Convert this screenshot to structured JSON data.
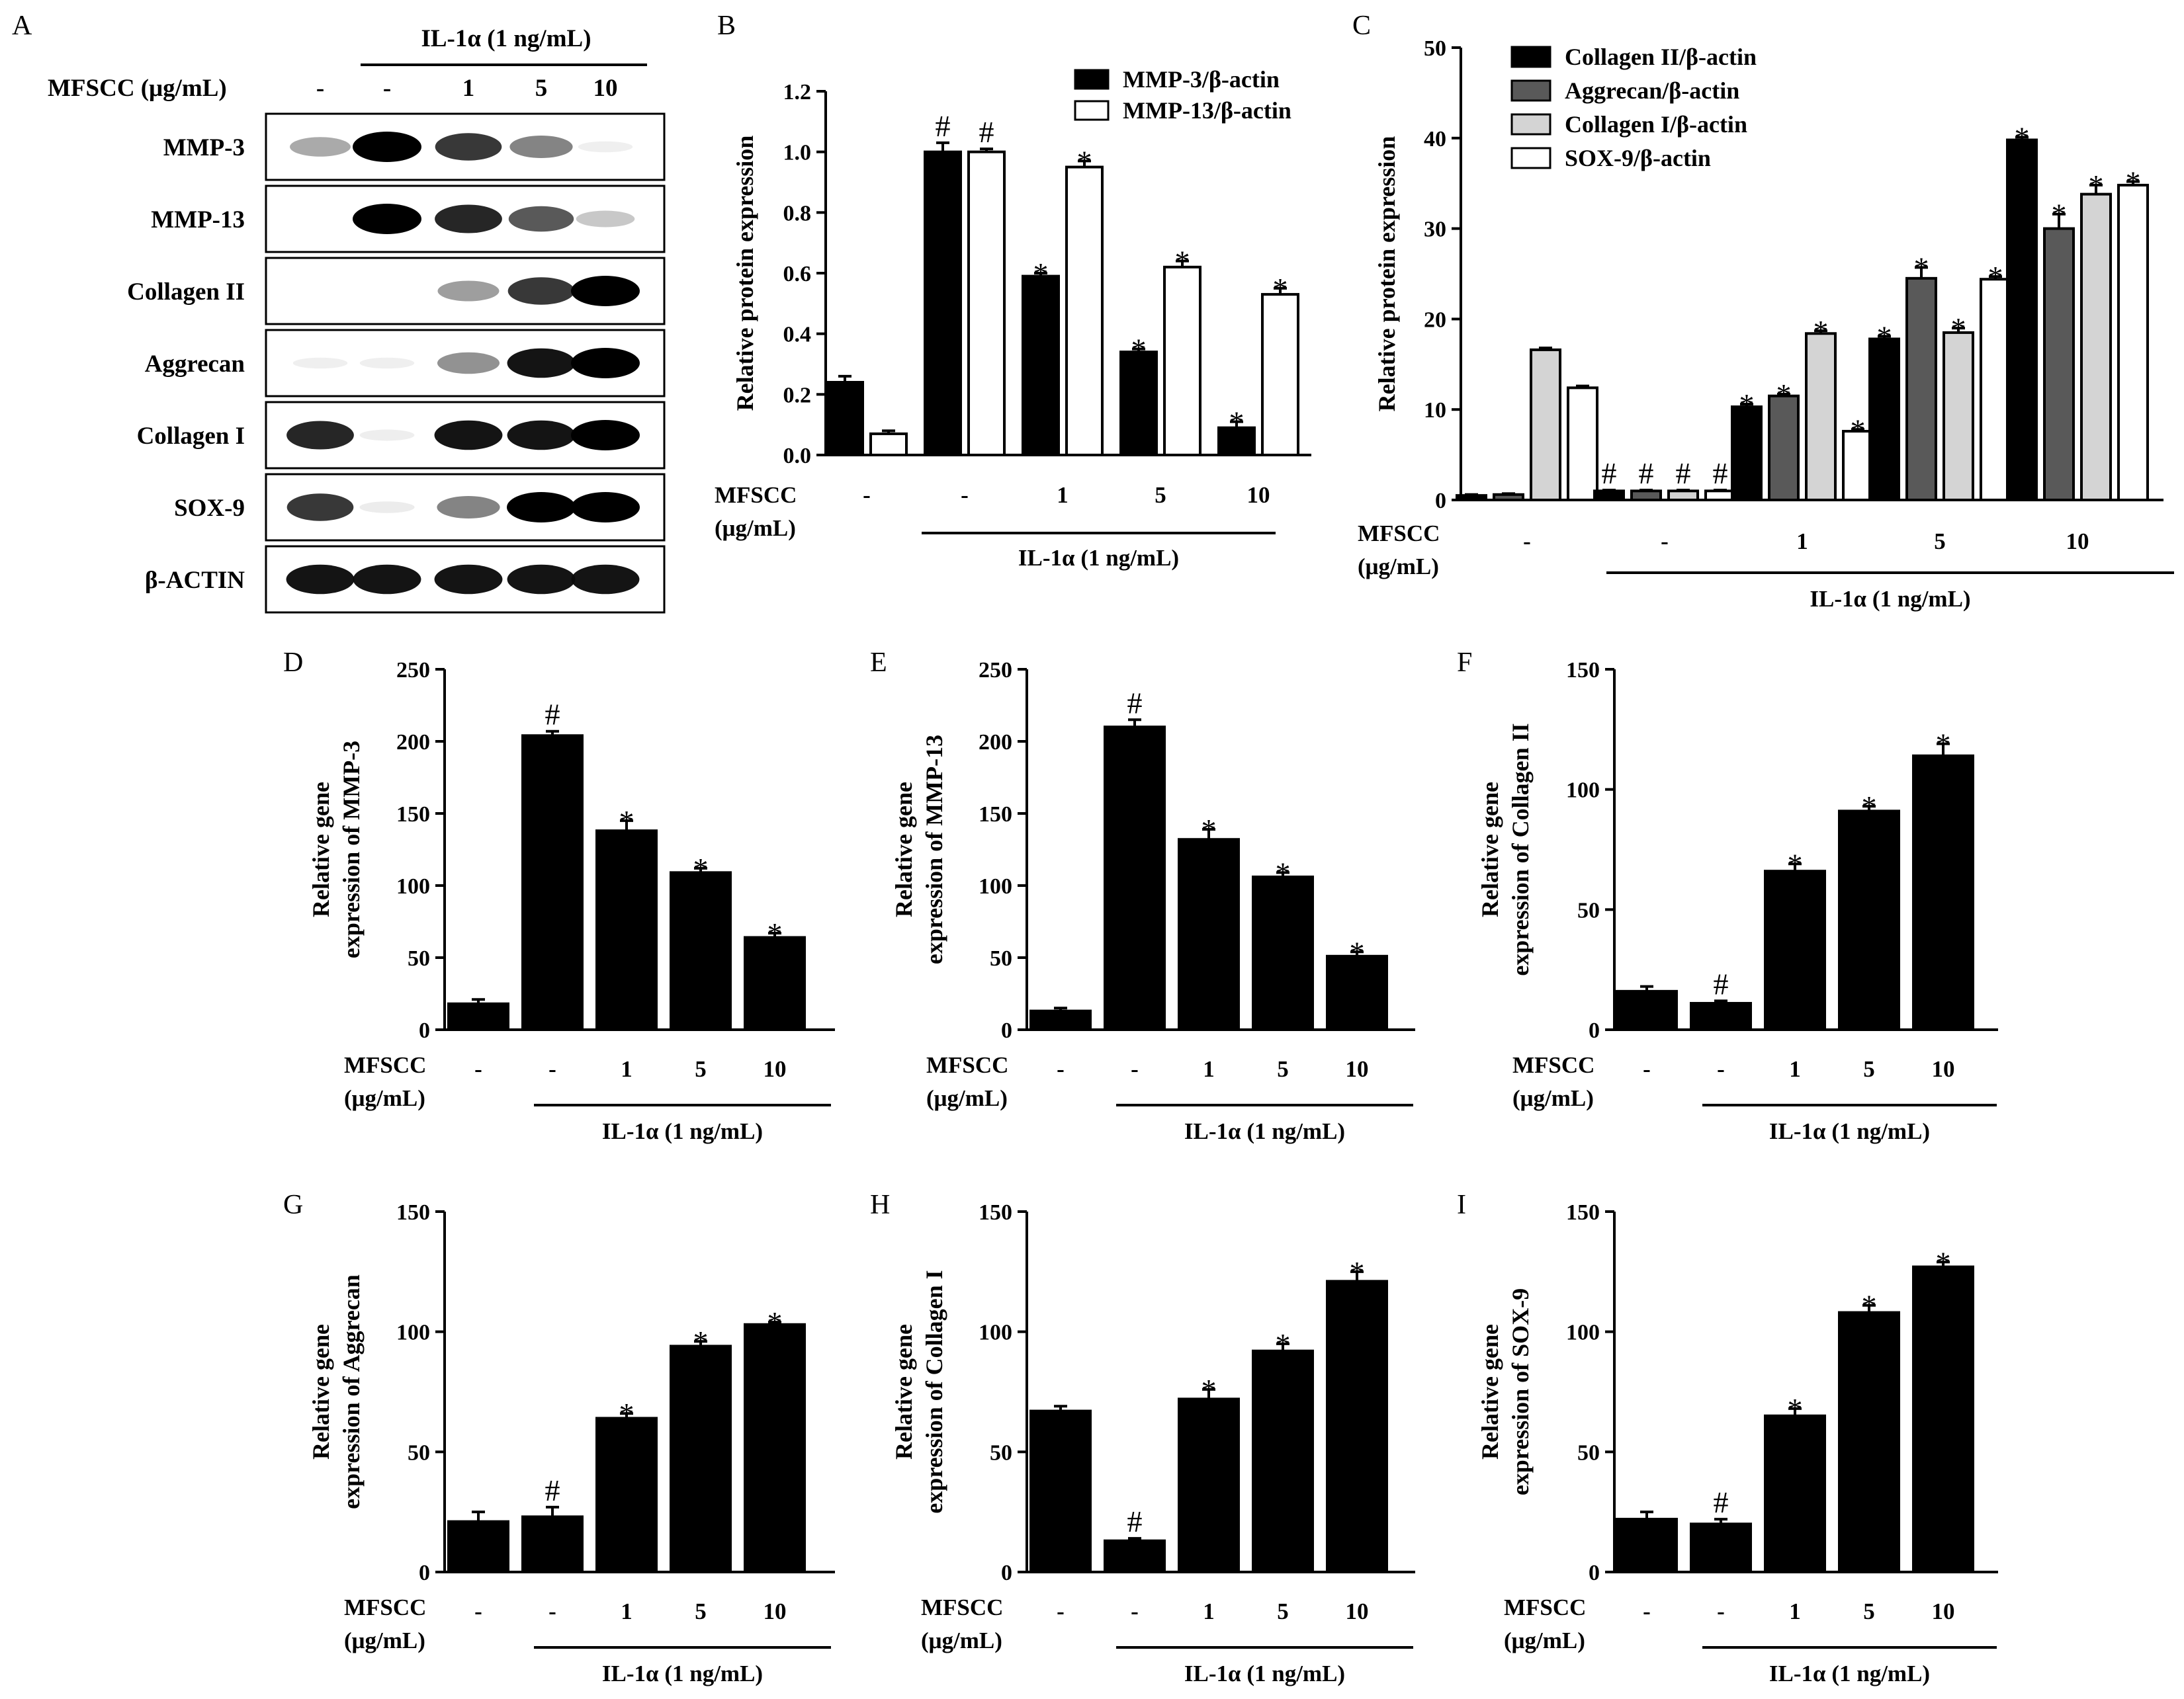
{
  "figure_title": "",
  "panel_a": {
    "letter": "A",
    "treatment_label": "IL-1α (1 ng/mL)",
    "dose_label": "MFSCC (μg/mL)",
    "lanes": [
      "-",
      "-",
      "1",
      "5",
      "10"
    ],
    "blots": [
      {
        "label": "MMP-3",
        "intensities": [
          0.45,
          1.0,
          0.85,
          0.6,
          0.02
        ]
      },
      {
        "label": "MMP-13",
        "intensities": [
          0.0,
          1.0,
          0.9,
          0.75,
          0.3
        ]
      },
      {
        "label": "Collagen II",
        "intensities": [
          0.0,
          0.0,
          0.5,
          0.85,
          1.0
        ]
      },
      {
        "label": "Aggrecan",
        "intensities": [
          0.02,
          0.02,
          0.55,
          0.95,
          1.0
        ]
      },
      {
        "label": "Collagen I",
        "intensities": [
          0.9,
          0.03,
          0.95,
          0.95,
          1.0
        ]
      },
      {
        "label": "SOX-9",
        "intensities": [
          0.85,
          0.05,
          0.6,
          1.0,
          1.0
        ]
      },
      {
        "label": "β-ACTIN",
        "intensities": [
          0.95,
          0.95,
          0.95,
          0.95,
          0.95
        ]
      }
    ]
  },
  "chart_data": [
    {
      "id": "B",
      "type": "bar",
      "ylabel": "Relative protein expression",
      "ylim": [
        0,
        1.2
      ],
      "yticks": [
        "0.0",
        "0.2",
        "0.4",
        "0.6",
        "0.8",
        "1.0",
        "1.2"
      ],
      "categories": [
        "-",
        "-",
        "1",
        "5",
        "10"
      ],
      "dose_label": "MFSCC\n(μg/mL)",
      "treatment_label": "IL-1α (1 ng/mL)",
      "legend": "top-right",
      "series": [
        {
          "name": "MMP-3/β-actin",
          "color": "#000000",
          "values": [
            0.24,
            1.0,
            0.59,
            0.34,
            0.09
          ],
          "errors": [
            0.02,
            0.03,
            0.01,
            0.01,
            0.02
          ],
          "marks": [
            "",
            "#",
            "*",
            "*",
            "*"
          ]
        },
        {
          "name": "MMP-13/β-actin",
          "color": "#ffffff",
          "values": [
            0.07,
            1.0,
            0.95,
            0.62,
            0.53
          ],
          "errors": [
            0.01,
            0.01,
            0.02,
            0.02,
            0.02
          ],
          "marks": [
            "",
            "#",
            "*",
            "*",
            "*"
          ]
        }
      ]
    },
    {
      "id": "C",
      "type": "bar",
      "ylabel": "Relative protein expression",
      "ylim": [
        0,
        50
      ],
      "yticks": [
        "0",
        "10",
        "20",
        "30",
        "40",
        "50"
      ],
      "categories": [
        "-",
        "-",
        "1",
        "5",
        "10"
      ],
      "dose_label": "MFSCC\n(μg/mL)",
      "treatment_label": "IL-1α (1 ng/mL)",
      "legend": "top-left",
      "series": [
        {
          "name": "Collagen II/β-actin",
          "color": "#000000",
          "values": [
            0.5,
            1.0,
            10.3,
            17.8,
            39.8
          ],
          "errors": [
            0.1,
            0.1,
            0.3,
            0.3,
            0.3
          ],
          "marks": [
            "",
            "#",
            "*",
            "*",
            "*"
          ]
        },
        {
          "name": "Aggrecan/β-actin",
          "color": "#595959",
          "values": [
            0.6,
            1.0,
            11.5,
            24.5,
            30.0
          ],
          "errors": [
            0.1,
            0.1,
            0.2,
            1.2,
            1.6
          ],
          "marks": [
            "",
            "#",
            "*",
            "*",
            "*"
          ]
        },
        {
          "name": "Collagen I/β-actin",
          "color": "#d4d4d4",
          "values": [
            16.6,
            1.0,
            18.4,
            18.5,
            33.8
          ],
          "errors": [
            0.2,
            0.1,
            0.3,
            0.5,
            1.0
          ],
          "marks": [
            "",
            "#",
            "*",
            "*",
            "*"
          ]
        },
        {
          "name": "SOX-9/β-actin",
          "color": "#ffffff",
          "values": [
            12.4,
            1.0,
            7.6,
            24.4,
            34.8
          ],
          "errors": [
            0.2,
            0.1,
            0.2,
            0.3,
            0.4
          ],
          "marks": [
            "",
            "#",
            "*",
            "*",
            "*"
          ]
        }
      ]
    },
    {
      "id": "D",
      "type": "bar",
      "ylabel": "Relative gene\nexpression of MMP-3",
      "ylim": [
        0,
        250
      ],
      "yticks": [
        "0",
        "50",
        "100",
        "150",
        "200",
        "250"
      ],
      "categories": [
        "-",
        "-",
        "1",
        "5",
        "10"
      ],
      "dose_label": "MFSCC\n(μg/mL)",
      "treatment_label": "IL-1α (1 ng/mL)",
      "series": [
        {
          "name": "MMP-3",
          "color": "#000000",
          "values": [
            18,
            204,
            138,
            109,
            64
          ],
          "errors": [
            3,
            3,
            7,
            3,
            3
          ],
          "marks": [
            "",
            "#",
            "*",
            "*",
            "*"
          ]
        }
      ]
    },
    {
      "id": "E",
      "type": "bar",
      "ylabel": "Relative gene\nexpression of MMP-13",
      "ylim": [
        0,
        250
      ],
      "yticks": [
        "0",
        "50",
        "100",
        "150",
        "200",
        "250"
      ],
      "categories": [
        "-",
        "-",
        "1",
        "5",
        "10"
      ],
      "dose_label": "MFSCC\n(μg/mL)",
      "treatment_label": "IL-1α (1 ng/mL)",
      "series": [
        {
          "name": "MMP-13",
          "color": "#000000",
          "values": [
            13,
            210,
            132,
            106,
            51
          ],
          "errors": [
            2,
            5,
            7,
            3,
            3
          ],
          "marks": [
            "",
            "#",
            "*",
            "*",
            "*"
          ]
        }
      ]
    },
    {
      "id": "F",
      "type": "bar",
      "ylabel": "Relative gene\nexpression of Collagen II",
      "ylim": [
        0,
        150
      ],
      "yticks": [
        "0",
        "50",
        "100",
        "150"
      ],
      "categories": [
        "-",
        "-",
        "1",
        "5",
        "10"
      ],
      "dose_label": "MFSCC\n(μg/mL)",
      "treatment_label": "IL-1α (1 ng/mL)",
      "series": [
        {
          "name": "Collagen II",
          "color": "#000000",
          "values": [
            16,
            11,
            66,
            91,
            114
          ],
          "errors": [
            2,
            1,
            3,
            2,
            5
          ],
          "marks": [
            "",
            "#",
            "*",
            "*",
            "*"
          ]
        }
      ]
    },
    {
      "id": "G",
      "type": "bar",
      "ylabel": "Relative gene\nexpression of Aggrecan",
      "ylim": [
        0,
        150
      ],
      "yticks": [
        "0",
        "50",
        "100",
        "150"
      ],
      "categories": [
        "-",
        "-",
        "1",
        "5",
        "10"
      ],
      "dose_label": "MFSCC\n(μg/mL)",
      "treatment_label": "IL-1α (1 ng/mL)",
      "series": [
        {
          "name": "Aggrecan",
          "color": "#000000",
          "values": [
            21,
            23,
            64,
            94,
            103
          ],
          "errors": [
            4,
            4,
            2,
            2,
            1
          ],
          "marks": [
            "",
            "#",
            "*",
            "*",
            "*"
          ]
        }
      ]
    },
    {
      "id": "H",
      "type": "bar",
      "ylabel": "Relative gene\nexpression of Collagen I",
      "ylim": [
        0,
        150
      ],
      "yticks": [
        "0",
        "50",
        "100",
        "150"
      ],
      "categories": [
        "-",
        "-",
        "1",
        "5",
        "10"
      ],
      "dose_label": "MFSCC\n(μg/mL)",
      "treatment_label": "IL-1α (1 ng/mL)",
      "series": [
        {
          "name": "Collagen I",
          "color": "#000000",
          "values": [
            67,
            13,
            72,
            92,
            121
          ],
          "errors": [
            2,
            1,
            4,
            3,
            4
          ],
          "marks": [
            "",
            "#",
            "*",
            "*",
            "*"
          ]
        }
      ]
    },
    {
      "id": "I",
      "type": "bar",
      "ylabel": "Relative gene\nexpression of SOX-9",
      "ylim": [
        0,
        150
      ],
      "yticks": [
        "0",
        "50",
        "100",
        "150"
      ],
      "categories": [
        "-",
        "-",
        "1",
        "5",
        "10"
      ],
      "dose_label": "MFSCC\n(μg/mL)",
      "treatment_label": "IL-1α (1 ng/mL)",
      "series": [
        {
          "name": "SOX-9",
          "color": "#000000",
          "values": [
            22,
            20,
            65,
            108,
            127
          ],
          "errors": [
            3,
            2,
            3,
            3,
            2
          ],
          "marks": [
            "",
            "#",
            "*",
            "*",
            "*"
          ]
        }
      ]
    }
  ]
}
